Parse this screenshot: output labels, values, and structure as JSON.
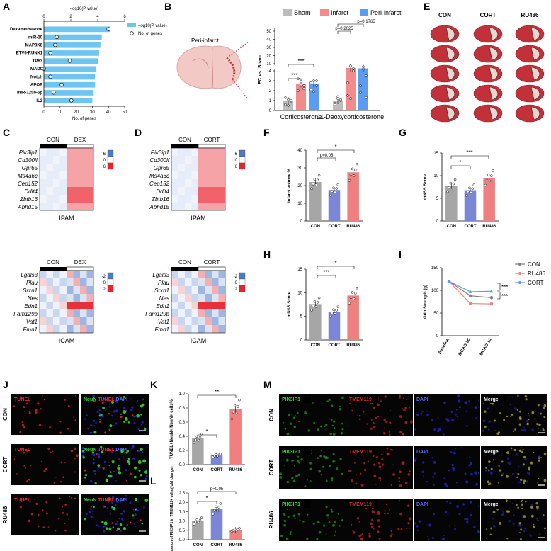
{
  "panel_letters": [
    "A",
    "B",
    "C",
    "D",
    "E",
    "F",
    "G",
    "H",
    "I",
    "J",
    "K",
    "L",
    "M"
  ],
  "colors": {
    "sham": "#bdbdbd",
    "infarct": "#f28b8b",
    "periinfarct": "#5b9bf0",
    "con": "#a6a6a6",
    "cort": "#7a86d6",
    "ru486": "#f08080",
    "bar_a": "#6ec6f0",
    "heat_red": "#e8252b",
    "heat_blue": "#4b7bc4",
    "stain_green": "#33d633",
    "stain_red": "#e22a2a",
    "stain_blue": "#2a2ad6"
  },
  "panelA": {
    "chart_data": {
      "type": "bar",
      "categories": [
        "Dexamethasone",
        "miR-10",
        "MAP3K8",
        "ETV6-RUNX1",
        "TP63",
        "MAD0",
        "Notch",
        "APOE",
        "miR-125b-5p",
        "IL2"
      ],
      "series": [
        {
          "name": "-log10(P value)",
          "values": [
            4.9,
            4.3,
            4.2,
            4.1,
            4.0,
            3.9,
            3.8,
            3.8,
            3.7,
            3.6
          ]
        },
        {
          "name": "No. of genes",
          "values": [
            40,
            8,
            7,
            4,
            16,
            0,
            4,
            11,
            6,
            17
          ]
        }
      ],
      "xlabel": "No. of genes",
      "x2label": "-log10(P value)",
      "xlim": [
        0,
        50
      ],
      "x2lim": [
        0,
        6
      ],
      "xticks": [
        "0",
        "10",
        "20",
        "30",
        "40",
        "50"
      ],
      "x2ticks": [
        "0",
        "2",
        "4",
        "6"
      ]
    }
  },
  "panelB": {
    "label": "Peri-infarct",
    "chart_data": {
      "type": "bar",
      "categories": [
        "Corticosterone",
        "11-Deoxycorticosterone"
      ],
      "series": [
        {
          "name": "Sham",
          "values": [
            1.0,
            1.0
          ]
        },
        {
          "name": "Infarct",
          "values": [
            2.7,
            4.8
          ]
        },
        {
          "name": "Peri-infarct",
          "values": [
            2.7,
            4.6
          ]
        }
      ],
      "ylabel": "FC vs. Sham",
      "yticks": [
        "0",
        "1",
        "2",
        "3",
        "4",
        "10",
        "20",
        "30",
        "40",
        "50"
      ],
      "annotations": [
        "***",
        "***",
        "p=0.2025",
        "p=0.1765"
      ]
    }
  },
  "panelE": {
    "groups": [
      "CON",
      "CORT",
      "RU486"
    ]
  },
  "heatmaps": {
    "C": {
      "groups": [
        "CON",
        "DEX"
      ],
      "title_top": "IPAM",
      "title_bottom": "ICAM",
      "genes_top": [
        "Pik3ip1",
        "Cd300lf",
        "Gpr65",
        "Ms4a6c",
        "Cep152",
        "Ddit4",
        "Zbtb16",
        "Abhd15"
      ],
      "genes_bottom": [
        "Lgals3",
        "Plau",
        "Srxn1",
        "Nes",
        "Edn1",
        "Fam129b",
        "Vat1",
        "Fmn1"
      ],
      "scale_top": [
        "-6",
        "0",
        "6"
      ],
      "scale_bottom": [
        "-2",
        "0",
        "2"
      ]
    },
    "D": {
      "groups": [
        "CON",
        "CORT"
      ],
      "title_top": "IPAM",
      "title_bottom": "ICAM",
      "genes_top": [
        "Pik3ip1",
        "Cd300lf",
        "Gpr65",
        "Ms4a6c",
        "Cep152",
        "Ddit4",
        "Zbtb16",
        "Abhd15"
      ],
      "genes_bottom": [
        "Lgals3",
        "Plau",
        "Srxn1",
        "Nes",
        "Edn1",
        "Fam129b",
        "Vat1",
        "Fmn1"
      ],
      "scale_top": [
        "-6",
        "0",
        "6"
      ],
      "scale_bottom": [
        "-2",
        "0",
        "2"
      ]
    }
  },
  "panelF": {
    "chart_data": {
      "type": "bar",
      "categories": [
        "CON",
        "CORT",
        "RU486"
      ],
      "values": [
        22,
        17.5,
        27.5
      ],
      "ylabel": "Infarct volume %",
      "ylim": [
        0,
        40
      ],
      "yticks": [
        "0",
        "10",
        "20",
        "30",
        "40"
      ],
      "annotations": [
        "p=0.05",
        "*"
      ]
    }
  },
  "panelG": {
    "chart_data": {
      "type": "bar",
      "categories": [
        "CON",
        "CORT",
        "RU486"
      ],
      "values": [
        7.8,
        6.8,
        9.5
      ],
      "ylabel": "mNSS Score",
      "ylim": [
        0,
        15
      ],
      "yticks": [
        "0",
        "5",
        "10",
        "15"
      ],
      "annotations": [
        "*",
        "***"
      ]
    }
  },
  "panelH": {
    "chart_data": {
      "type": "bar",
      "categories": [
        "CON",
        "CORT",
        "RU486"
      ],
      "values": [
        7.6,
        6.0,
        9.4
      ],
      "ylabel": "mNSS Score",
      "ylim": [
        0,
        15
      ],
      "yticks": [
        "0",
        "5",
        "10",
        "15"
      ],
      "annotations": [
        "***",
        "*"
      ]
    }
  },
  "panelI": {
    "chart_data": {
      "type": "line",
      "categories": [
        "Baseline",
        "MCAO 1d",
        "MCAO 3d"
      ],
      "series": [
        {
          "name": "CON",
          "values": [
            120,
            88,
            84
          ]
        },
        {
          "name": "RU486",
          "values": [
            120,
            71,
            70
          ]
        },
        {
          "name": "CORT",
          "values": [
            120,
            97,
            98
          ]
        }
      ],
      "ylabel": "Grip Strength (g)",
      "ylim": [
        0,
        150
      ],
      "yticks": [
        "0",
        "50",
        "100",
        "150"
      ],
      "annotations": [
        "***",
        "***"
      ]
    }
  },
  "panelK": {
    "chart_data": {
      "type": "bar",
      "categories": [
        "CON",
        "CORT",
        "RU486"
      ],
      "values": [
        0.37,
        0.13,
        0.78
      ],
      "ylabel": "TUNEL+NeuN+/NeuN+ cells%",
      "ylim": [
        0,
        1.0
      ],
      "yticks": [
        "0.0",
        "0.2",
        "0.4",
        "0.6",
        "0.8",
        "1.0"
      ],
      "annotations": [
        "*",
        "**"
      ]
    }
  },
  "panelL": {
    "chart_data": {
      "type": "bar",
      "categories": [
        "CON",
        "CORT",
        "RU486"
      ],
      "values": [
        1.0,
        1.65,
        0.52
      ],
      "ylabel": "The expression of PIK3IP1 in TMEM119+ cells (fold change)",
      "ylim": [
        0,
        2.5
      ],
      "yticks": [
        "0.0",
        "0.5",
        "1.0",
        "1.5",
        "2.0",
        "2.5"
      ],
      "annotations": [
        "*",
        "p=0.05"
      ]
    }
  },
  "panelJ": {
    "rows": [
      "CON",
      "CORT",
      "RU486"
    ],
    "tile1": "TUNEL",
    "tile2a": "NeuN",
    "tile2b": "TUNEL",
    "tile2c": "DAPI"
  },
  "panelM": {
    "rows": [
      "CON",
      "CORT",
      "RU486"
    ],
    "cols": [
      "PIK3IP1",
      "TMEM119",
      "DAPI",
      "Merge"
    ]
  }
}
